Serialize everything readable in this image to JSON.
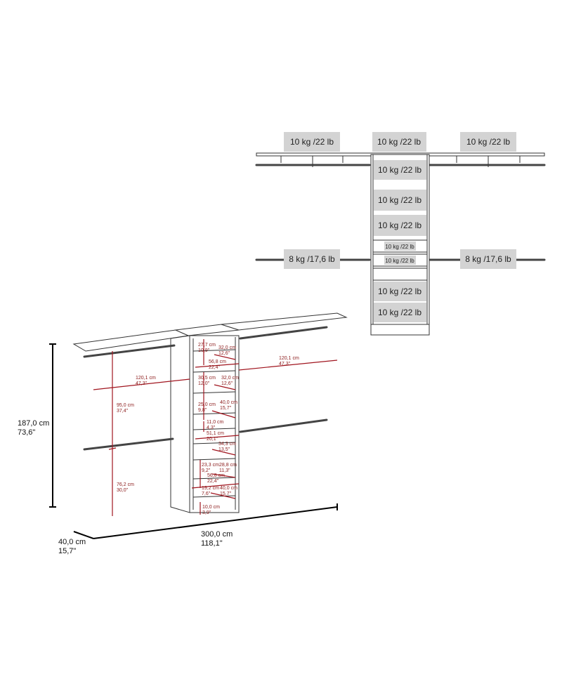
{
  "load_labels": {
    "top_left": "10 kg /22 lb",
    "top_center": "10 kg /22 lb",
    "top_right": "10 kg /22 lb",
    "tower": [
      "10 kg /22 lb",
      "10 kg /22 lb",
      "10 kg /22 lb",
      "10 kg /22 lb",
      "10 kg /22 lb",
      "10 kg /22 lb",
      "10 kg /22 lb"
    ],
    "rod_left": "8 kg /17,6 lb",
    "rod_right": "8 kg /17,6 lb"
  },
  "overall": {
    "height_cm": "187,0 cm",
    "height_in": "73,6\"",
    "width_cm": "300,0 cm",
    "width_in": "118,1\"",
    "depth_cm": "40,0 cm",
    "depth_in": "15,7\""
  },
  "detail": {
    "left_width": [
      "120,1 cm",
      "47,3\""
    ],
    "right_width": [
      "120,1 cm",
      "47,3\""
    ],
    "upper_hang": [
      "95,0 cm",
      "37,4\""
    ],
    "lower_hang": [
      "76,2 cm",
      "30,0\""
    ],
    "t1": [
      "27,7 cm",
      "10,9\""
    ],
    "d1": [
      "32,0 cm",
      "12,6\""
    ],
    "w1": [
      "56,8 cm",
      "22,4\""
    ],
    "t2": [
      "30,5 cm",
      "12,0\""
    ],
    "d2": [
      "32,0 cm",
      "12,6\""
    ],
    "t3": [
      "25,0 cm",
      "9,8\""
    ],
    "d3": [
      "40,0 cm",
      "15,7\""
    ],
    "t4": [
      "11,0 cm",
      "4,3\""
    ],
    "w2": [
      "51,1 cm",
      "20,1\""
    ],
    "d4": [
      "34,3 cm",
      "13,5\""
    ],
    "t5": [
      "23,3 cm",
      "9,2\""
    ],
    "d5": [
      "28,8 cm",
      "11,3\""
    ],
    "w3": [
      "56,8 cm",
      "22,4\""
    ],
    "t6": [
      "19,2 cm",
      "7,6\""
    ],
    "d6": [
      "40,0 cm",
      "15,7\""
    ],
    "t7": [
      "10,0 cm",
      "3,9\""
    ]
  }
}
